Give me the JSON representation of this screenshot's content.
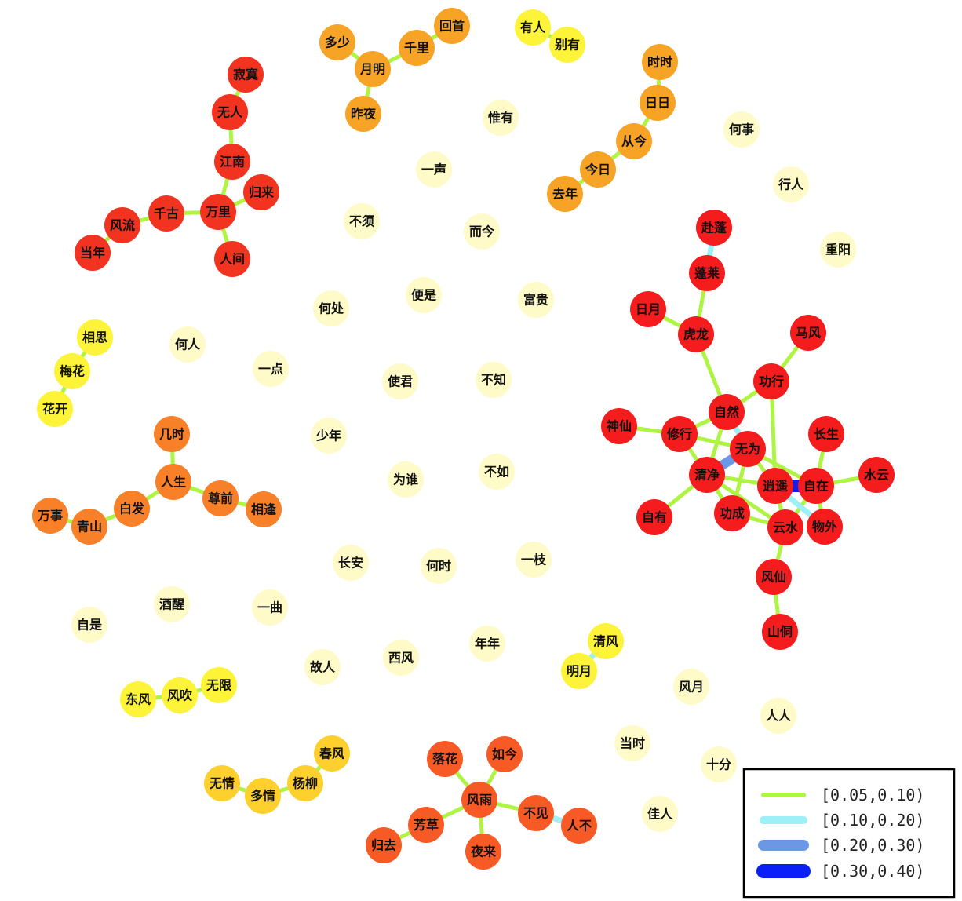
{
  "colors": {
    "edge_bins": [
      "#adf542",
      "#9cf0f6",
      "#6a98e4",
      "#0a1ff5"
    ],
    "background": "#ffffff",
    "legend_border": "#000000",
    "label": "#111111"
  },
  "legend": {
    "items": [
      {
        "label": "[0.05,0.10)",
        "bin": 0
      },
      {
        "label": "[0.10,0.20)",
        "bin": 1
      },
      {
        "label": "[0.20,0.30)",
        "bin": 2
      },
      {
        "label": "[0.30,0.40)",
        "bin": 3
      }
    ]
  },
  "nodes": [
    {
      "id": "寂寞",
      "color": "#f1331f"
    },
    {
      "id": "无人",
      "color": "#f1331f"
    },
    {
      "id": "江南",
      "color": "#f1331f"
    },
    {
      "id": "归来",
      "color": "#f1331f"
    },
    {
      "id": "万里",
      "color": "#f1331f"
    },
    {
      "id": "千古",
      "color": "#f1331f"
    },
    {
      "id": "风流",
      "color": "#f1331f"
    },
    {
      "id": "当年",
      "color": "#f1331f"
    },
    {
      "id": "人间",
      "color": "#f1331f"
    },
    {
      "id": "多少",
      "color": "#f7a326"
    },
    {
      "id": "月明",
      "color": "#f7a326"
    },
    {
      "id": "千里",
      "color": "#f7a326"
    },
    {
      "id": "回首",
      "color": "#f7a326"
    },
    {
      "id": "昨夜",
      "color": "#f7a326"
    },
    {
      "id": "有人",
      "color": "#fdf43a"
    },
    {
      "id": "别有",
      "color": "#fdf43a"
    },
    {
      "id": "时时",
      "color": "#f7a326"
    },
    {
      "id": "日日",
      "color": "#f7a326"
    },
    {
      "id": "从今",
      "color": "#f7a326"
    },
    {
      "id": "今日",
      "color": "#f7a326"
    },
    {
      "id": "去年",
      "color": "#f7a326"
    },
    {
      "id": "惟有",
      "color": "#fefbc8"
    },
    {
      "id": "一声",
      "color": "#fefbc8"
    },
    {
      "id": "何事",
      "color": "#fefbc8"
    },
    {
      "id": "行人",
      "color": "#fefbc8"
    },
    {
      "id": "不须",
      "color": "#fefbc8"
    },
    {
      "id": "而今",
      "color": "#fefbc8"
    },
    {
      "id": "重阳",
      "color": "#fefbc8"
    },
    {
      "id": "便是",
      "color": "#fefbc8"
    },
    {
      "id": "富贵",
      "color": "#fefbc8"
    },
    {
      "id": "何处",
      "color": "#fefbc8"
    },
    {
      "id": "何人",
      "color": "#fefbc8"
    },
    {
      "id": "一点",
      "color": "#fefbc8"
    },
    {
      "id": "使君",
      "color": "#fefbc8"
    },
    {
      "id": "不知",
      "color": "#fefbc8"
    },
    {
      "id": "少年",
      "color": "#fefbc8"
    },
    {
      "id": "为谁",
      "color": "#fefbc8"
    },
    {
      "id": "不如",
      "color": "#fefbc8"
    },
    {
      "id": "长安",
      "color": "#fefbc8"
    },
    {
      "id": "何时",
      "color": "#fefbc8"
    },
    {
      "id": "一枝",
      "color": "#fefbc8"
    },
    {
      "id": "酒醒",
      "color": "#fefbc8"
    },
    {
      "id": "一曲",
      "color": "#fefbc8"
    },
    {
      "id": "自是",
      "color": "#fefbc8"
    },
    {
      "id": "故人",
      "color": "#fefbc8"
    },
    {
      "id": "西风",
      "color": "#fefbc8"
    },
    {
      "id": "年年",
      "color": "#fefbc8"
    },
    {
      "id": "风月",
      "color": "#fefbc8"
    },
    {
      "id": "人人",
      "color": "#fefbc8"
    },
    {
      "id": "当时",
      "color": "#fefbc8"
    },
    {
      "id": "十分",
      "color": "#fefbc8"
    },
    {
      "id": "佳人",
      "color": "#fefbc8"
    },
    {
      "id": "相思",
      "color": "#fdf43a"
    },
    {
      "id": "梅花",
      "color": "#fdf43a"
    },
    {
      "id": "花开",
      "color": "#fdf43a"
    },
    {
      "id": "几时",
      "color": "#f78029"
    },
    {
      "id": "人生",
      "color": "#f78029"
    },
    {
      "id": "白发",
      "color": "#f78029"
    },
    {
      "id": "尊前",
      "color": "#f78029"
    },
    {
      "id": "相逢",
      "color": "#f78029"
    },
    {
      "id": "万事",
      "color": "#f78029"
    },
    {
      "id": "青山",
      "color": "#f78029"
    },
    {
      "id": "东风",
      "color": "#fdf43a"
    },
    {
      "id": "风吹",
      "color": "#fdf43a"
    },
    {
      "id": "无限",
      "color": "#fdf43a"
    },
    {
      "id": "清风",
      "color": "#fdf43a"
    },
    {
      "id": "明月",
      "color": "#fdf43a"
    },
    {
      "id": "春风",
      "color": "#fdd02e"
    },
    {
      "id": "杨柳",
      "color": "#fdd02e"
    },
    {
      "id": "多情",
      "color": "#fdd02e"
    },
    {
      "id": "无情",
      "color": "#fdd02e"
    },
    {
      "id": "落花",
      "color": "#f85a26"
    },
    {
      "id": "如今",
      "color": "#f85a26"
    },
    {
      "id": "风雨",
      "color": "#f85a26"
    },
    {
      "id": "芳草",
      "color": "#f85a26"
    },
    {
      "id": "归去",
      "color": "#f85a26"
    },
    {
      "id": "不见",
      "color": "#f85a26"
    },
    {
      "id": "人不",
      "color": "#f85a26"
    },
    {
      "id": "夜来",
      "color": "#f85a26"
    },
    {
      "id": "赴蓬",
      "color": "#f41c1c"
    },
    {
      "id": "蓬莱",
      "color": "#f41c1c"
    },
    {
      "id": "日月",
      "color": "#f41c1c"
    },
    {
      "id": "虎龙",
      "color": "#f41c1c"
    },
    {
      "id": "马风",
      "color": "#f41c1c"
    },
    {
      "id": "功行",
      "color": "#f41c1c"
    },
    {
      "id": "自然",
      "color": "#f41c1c"
    },
    {
      "id": "神仙",
      "color": "#f41c1c"
    },
    {
      "id": "修行",
      "color": "#f41c1c"
    },
    {
      "id": "无为",
      "color": "#f41c1c"
    },
    {
      "id": "长生",
      "color": "#f41c1c"
    },
    {
      "id": "清净",
      "color": "#f41c1c"
    },
    {
      "id": "逍遥",
      "color": "#f41c1c"
    },
    {
      "id": "自在",
      "color": "#f41c1c"
    },
    {
      "id": "水云",
      "color": "#f41c1c"
    },
    {
      "id": "自有",
      "color": "#f41c1c"
    },
    {
      "id": "功成",
      "color": "#f41c1c"
    },
    {
      "id": "云水",
      "color": "#f41c1c"
    },
    {
      "id": "物外",
      "color": "#f41c1c"
    },
    {
      "id": "风仙",
      "color": "#f41c1c"
    },
    {
      "id": "山侗",
      "color": "#f41c1c"
    }
  ],
  "edges": [
    {
      "s": "寂寞",
      "t": "无人",
      "bin": 0
    },
    {
      "s": "无人",
      "t": "江南",
      "bin": 0
    },
    {
      "s": "江南",
      "t": "万里",
      "bin": 0
    },
    {
      "s": "万里",
      "t": "归来",
      "bin": 0
    },
    {
      "s": "万里",
      "t": "千古",
      "bin": 0
    },
    {
      "s": "万里",
      "t": "人间",
      "bin": 0
    },
    {
      "s": "千古",
      "t": "风流",
      "bin": 0
    },
    {
      "s": "风流",
      "t": "当年",
      "bin": 0
    },
    {
      "s": "多少",
      "t": "月明",
      "bin": 0
    },
    {
      "s": "月明",
      "t": "千里",
      "bin": 0
    },
    {
      "s": "千里",
      "t": "回首",
      "bin": 0
    },
    {
      "s": "月明",
      "t": "昨夜",
      "bin": 0
    },
    {
      "s": "有人",
      "t": "别有",
      "bin": 0
    },
    {
      "s": "时时",
      "t": "日日",
      "bin": 0
    },
    {
      "s": "日日",
      "t": "从今",
      "bin": 0
    },
    {
      "s": "从今",
      "t": "今日",
      "bin": 0
    },
    {
      "s": "今日",
      "t": "去年",
      "bin": 0
    },
    {
      "s": "相思",
      "t": "梅花",
      "bin": 0
    },
    {
      "s": "梅花",
      "t": "花开",
      "bin": 0
    },
    {
      "s": "几时",
      "t": "人生",
      "bin": 0
    },
    {
      "s": "人生",
      "t": "白发",
      "bin": 0
    },
    {
      "s": "人生",
      "t": "尊前",
      "bin": 0
    },
    {
      "s": "尊前",
      "t": "相逢",
      "bin": 0
    },
    {
      "s": "白发",
      "t": "青山",
      "bin": 0
    },
    {
      "s": "青山",
      "t": "万事",
      "bin": 0
    },
    {
      "s": "东风",
      "t": "风吹",
      "bin": 0
    },
    {
      "s": "风吹",
      "t": "无限",
      "bin": 0
    },
    {
      "s": "清风",
      "t": "明月",
      "bin": 1
    },
    {
      "s": "春风",
      "t": "杨柳",
      "bin": 0
    },
    {
      "s": "杨柳",
      "t": "多情",
      "bin": 0
    },
    {
      "s": "多情",
      "t": "无情",
      "bin": 0
    },
    {
      "s": "落花",
      "t": "风雨",
      "bin": 0
    },
    {
      "s": "如今",
      "t": "风雨",
      "bin": 0
    },
    {
      "s": "风雨",
      "t": "芳草",
      "bin": 0
    },
    {
      "s": "芳草",
      "t": "归去",
      "bin": 0
    },
    {
      "s": "风雨",
      "t": "不见",
      "bin": 0
    },
    {
      "s": "不见",
      "t": "人不",
      "bin": 1
    },
    {
      "s": "风雨",
      "t": "夜来",
      "bin": 0
    },
    {
      "s": "赴蓬",
      "t": "蓬莱",
      "bin": 1
    },
    {
      "s": "蓬莱",
      "t": "虎龙",
      "bin": 0
    },
    {
      "s": "日月",
      "t": "虎龙",
      "bin": 0
    },
    {
      "s": "虎龙",
      "t": "自然",
      "bin": 0
    },
    {
      "s": "马风",
      "t": "功行",
      "bin": 0
    },
    {
      "s": "功行",
      "t": "自然",
      "bin": 0
    },
    {
      "s": "功行",
      "t": "逍遥",
      "bin": 0
    },
    {
      "s": "神仙",
      "t": "修行",
      "bin": 0
    },
    {
      "s": "修行",
      "t": "自然",
      "bin": 0
    },
    {
      "s": "修行",
      "t": "无为",
      "bin": 0
    },
    {
      "s": "修行",
      "t": "清净",
      "bin": 0
    },
    {
      "s": "自然",
      "t": "无为",
      "bin": 1
    },
    {
      "s": "自然",
      "t": "清净",
      "bin": 0
    },
    {
      "s": "无为",
      "t": "清净",
      "bin": 2
    },
    {
      "s": "无为",
      "t": "逍遥",
      "bin": 0
    },
    {
      "s": "无为",
      "t": "功成",
      "bin": 0
    },
    {
      "s": "无为",
      "t": "自在",
      "bin": 0
    },
    {
      "s": "清净",
      "t": "逍遥",
      "bin": 0
    },
    {
      "s": "清净",
      "t": "自有",
      "bin": 0
    },
    {
      "s": "清净",
      "t": "功成",
      "bin": 0
    },
    {
      "s": "清净",
      "t": "云水",
      "bin": 0
    },
    {
      "s": "逍遥",
      "t": "自在",
      "bin": 3
    },
    {
      "s": "逍遥",
      "t": "云水",
      "bin": 0
    },
    {
      "s": "逍遥",
      "t": "物外",
      "bin": 1
    },
    {
      "s": "长生",
      "t": "自在",
      "bin": 0
    },
    {
      "s": "自在",
      "t": "水云",
      "bin": 0
    },
    {
      "s": "自在",
      "t": "物外",
      "bin": 0
    },
    {
      "s": "自在",
      "t": "云水",
      "bin": 0
    },
    {
      "s": "功成",
      "t": "云水",
      "bin": 0
    },
    {
      "s": "云水",
      "t": "风仙",
      "bin": 0
    },
    {
      "s": "风仙",
      "t": "山侗",
      "bin": 0
    }
  ]
}
